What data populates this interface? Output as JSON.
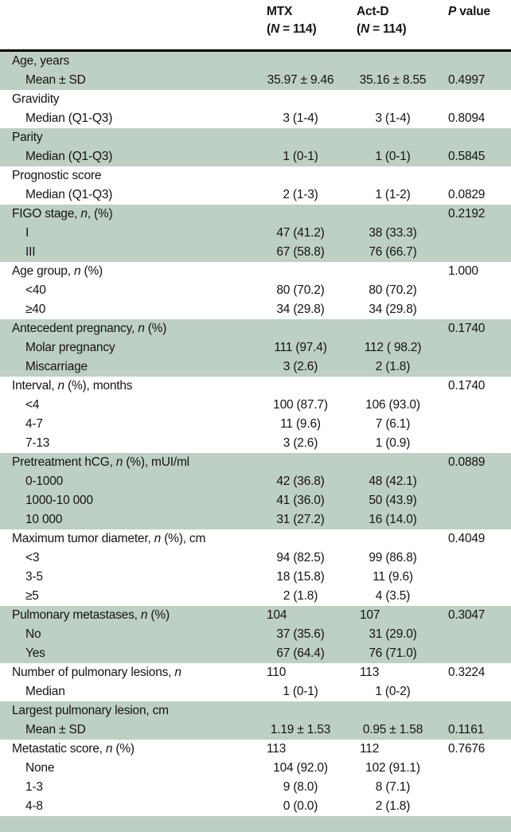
{
  "table": {
    "shaded_color": "#becfc3",
    "rule_color": "#000000",
    "header": {
      "mtx": {
        "line1": "MTX",
        "line2": "(*N* = 114)"
      },
      "actd": {
        "line1": "Act-D",
        "line2": "(*N* = 114)"
      },
      "pvalue": {
        "line1": "*P* value",
        "line2": ""
      }
    },
    "sections": [
      {
        "shaded": true,
        "rows": [
          {
            "label": "Age, years",
            "indent": 0
          },
          {
            "label": "Mean ± SD",
            "indent": 1,
            "mtx": "35.97 ± 9.46",
            "actd": "35.16 ± 8.55",
            "p": "0.4997"
          }
        ]
      },
      {
        "shaded": false,
        "rows": [
          {
            "label": "Gravidity",
            "indent": 0
          },
          {
            "label": "Median (Q1-Q3)",
            "indent": 1,
            "mtx": "3 (1-4)",
            "actd": "3 (1-4)",
            "p": "0.8094"
          }
        ]
      },
      {
        "shaded": true,
        "rows": [
          {
            "label": "Parity",
            "indent": 0
          },
          {
            "label": "Median (Q1-Q3)",
            "indent": 1,
            "mtx": "1 (0-1)",
            "actd": "1 (0-1)",
            "p": "0.5845"
          }
        ]
      },
      {
        "shaded": false,
        "rows": [
          {
            "label": "Prognostic score",
            "indent": 0
          },
          {
            "label": "Median (Q1-Q3)",
            "indent": 1,
            "mtx": "2 (1-3)",
            "actd": "1 (1-2)",
            "p": "0.0829"
          }
        ]
      },
      {
        "shaded": true,
        "rows": [
          {
            "label": "FIGO stage, *n*, (%)",
            "indent": 0,
            "p": "0.2192"
          },
          {
            "label": "I",
            "indent": 1,
            "mtx": "47 (41.2)",
            "actd": "38 (33.3)"
          },
          {
            "label": "III",
            "indent": 1,
            "mtx": "67 (58.8)",
            "actd": "76 (66.7)"
          }
        ]
      },
      {
        "shaded": false,
        "rows": [
          {
            "label": "Age group, *n* (%)",
            "indent": 0,
            "p": "1.000"
          },
          {
            "label": "<40",
            "indent": 1,
            "mtx": "80 (70.2)",
            "actd": "80 (70.2)"
          },
          {
            "label": "≥40",
            "indent": 1,
            "mtx": "34 (29.8)",
            "actd": "34 (29.8)"
          }
        ]
      },
      {
        "shaded": true,
        "rows": [
          {
            "label": "Antecedent pregnancy, *n* (%)",
            "indent": 0,
            "p": "0.1740"
          },
          {
            "label": "Molar pregnancy",
            "indent": 1,
            "mtx": "111 (97.4)",
            "actd": "112 ( 98.2)"
          },
          {
            "label": "Miscarriage",
            "indent": 1,
            "mtx": "3 (2.6)",
            "actd": "2 (1.8)"
          }
        ]
      },
      {
        "shaded": false,
        "rows": [
          {
            "label": "Interval, *n* (%), months",
            "indent": 0,
            "p": "0.1740"
          },
          {
            "label": "<4",
            "indent": 1,
            "mtx": "100 (87.7)",
            "actd": "106 (93.0)"
          },
          {
            "label": "4-7",
            "indent": 1,
            "mtx": "11 (9.6)",
            "actd": "7 (6.1)"
          },
          {
            "label": "7-13",
            "indent": 1,
            "mtx": "3 (2.6)",
            "actd": "1 (0.9)"
          }
        ]
      },
      {
        "shaded": true,
        "rows": [
          {
            "label": "Pretreatment hCG, *n* (%), mUI/ml",
            "indent": 0,
            "p": "0.0889"
          },
          {
            "label": "0-1000",
            "indent": 1,
            "mtx": "42 (36.8)",
            "actd": "48 (42.1)"
          },
          {
            "label": "1000-10 000",
            "indent": 1,
            "mtx": "41 (36.0)",
            "actd": "50 (43.9)"
          },
          {
            "label": "10 000",
            "indent": 1,
            "mtx": "31 (27.2)",
            "actd": "16 (14.0)"
          }
        ]
      },
      {
        "shaded": false,
        "rows": [
          {
            "label": "Maximum tumor diameter, *n* (%), cm",
            "indent": 0,
            "p": "0.4049"
          },
          {
            "label": "<3",
            "indent": 1,
            "mtx": "94 (82.5)",
            "actd": "99 (86.8)"
          },
          {
            "label": "3-5",
            "indent": 1,
            "mtx": "18 (15.8)",
            "actd": "11 (9.6)"
          },
          {
            "label": "≥5",
            "indent": 1,
            "mtx": "2 (1.8)",
            "actd": "4 (3.5)"
          }
        ]
      },
      {
        "shaded": true,
        "rows": [
          {
            "label": "Pulmonary metastases, *n* (%)",
            "indent": 0,
            "mtx": "104",
            "actd": "107",
            "p": "0.3047",
            "align": "left"
          },
          {
            "label": "No",
            "indent": 1,
            "mtx": "37 (35.6)",
            "actd": "31 (29.0)"
          },
          {
            "label": "Yes",
            "indent": 1,
            "mtx": "67 (64.4)",
            "actd": "76 (71.0)"
          }
        ]
      },
      {
        "shaded": false,
        "rows": [
          {
            "label": "Number of pulmonary lesions, *n*",
            "indent": 0,
            "mtx": "110",
            "actd": "113",
            "p": "0.3224",
            "align": "left"
          },
          {
            "label": "Median",
            "indent": 1,
            "mtx": "1 (0-1)",
            "actd": "1 (0-2)"
          }
        ]
      },
      {
        "shaded": true,
        "rows": [
          {
            "label": "Largest pulmonary lesion, cm",
            "indent": 0
          },
          {
            "label": "Mean ± SD",
            "indent": 1,
            "mtx": "1.19 ± 1.53",
            "actd": "0.95 ± 1.58",
            "p": "0.1161"
          }
        ]
      },
      {
        "shaded": false,
        "rows": [
          {
            "label": "Metastatic score, *n* (%)",
            "indent": 0,
            "mtx": "113",
            "actd": "112",
            "p": "0.7676",
            "align": "left"
          },
          {
            "label": "None",
            "indent": 1,
            "mtx": "104 (92.0)",
            "actd": "102 (91.1)"
          },
          {
            "label": "1-3",
            "indent": 1,
            "mtx": "9 (8.0)",
            "actd": "8 (7.1)"
          },
          {
            "label": "4-8",
            "indent": 1,
            "mtx": "0 (0.0)",
            "actd": "2 (1.8)"
          }
        ]
      },
      {
        "shaded": true,
        "partial_strip": true,
        "rows": []
      }
    ]
  }
}
